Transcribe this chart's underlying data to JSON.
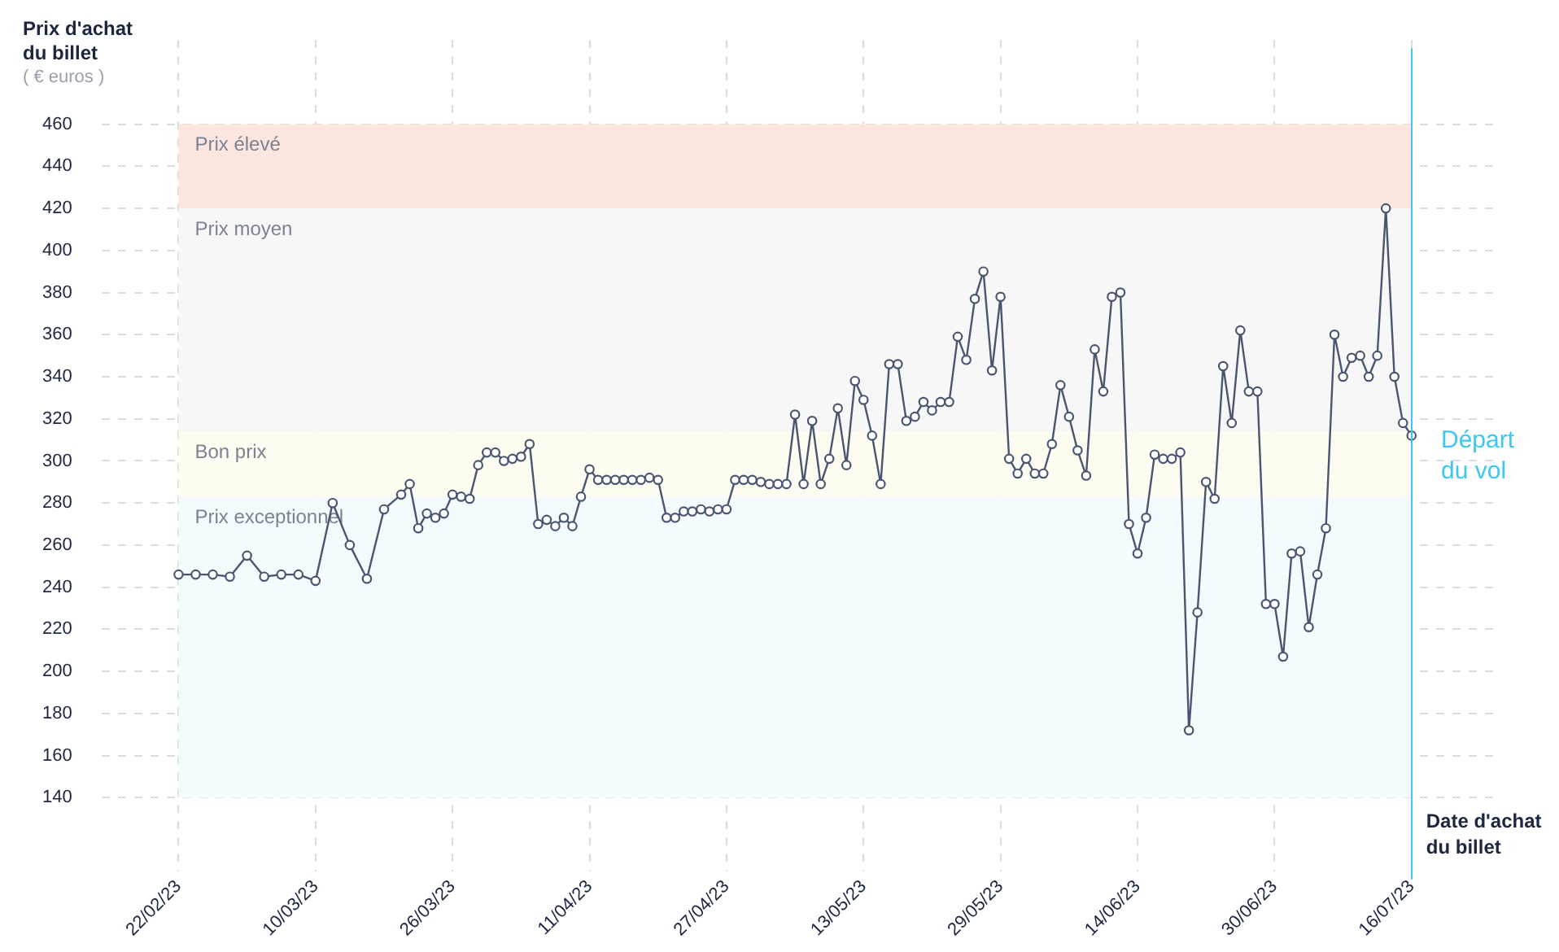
{
  "chart_data": {
    "type": "line",
    "ylabel": "Prix d'achat du billet",
    "xlabel": "Date d'achat du billet",
    "annotations": [
      "( € euros )"
    ],
    "x": [
      "2023-02-22",
      "2023-02-24",
      "2023-02-26",
      "2023-02-28",
      "2023-03-02",
      "2023-03-04",
      "2023-03-06",
      "2023-03-08",
      "2023-03-10",
      "2023-03-12",
      "2023-03-14",
      "2023-03-16",
      "2023-03-18",
      "2023-03-20",
      "2023-03-21",
      "2023-03-22",
      "2023-03-23",
      "2023-03-24",
      "2023-03-25",
      "2023-03-26",
      "2023-03-27",
      "2023-03-28",
      "2023-03-29",
      "2023-03-30",
      "2023-03-31",
      "2023-04-01",
      "2023-04-02",
      "2023-04-03",
      "2023-04-04",
      "2023-04-05",
      "2023-04-06",
      "2023-04-07",
      "2023-04-08",
      "2023-04-09",
      "2023-04-10",
      "2023-04-11",
      "2023-04-12",
      "2023-04-13",
      "2023-04-14",
      "2023-04-15",
      "2023-04-16",
      "2023-04-17",
      "2023-04-18",
      "2023-04-19",
      "2023-04-20",
      "2023-04-21",
      "2023-04-22",
      "2023-04-23",
      "2023-04-24",
      "2023-04-25",
      "2023-04-26",
      "2023-04-27",
      "2023-04-28",
      "2023-04-29",
      "2023-04-30",
      "2023-05-01",
      "2023-05-02",
      "2023-05-03",
      "2023-05-04",
      "2023-05-05",
      "2023-05-06",
      "2023-05-07",
      "2023-05-08",
      "2023-05-09",
      "2023-05-10",
      "2023-05-11",
      "2023-05-12",
      "2023-05-13",
      "2023-05-14",
      "2023-05-15",
      "2023-05-16",
      "2023-05-17",
      "2023-05-18",
      "2023-05-19",
      "2023-05-20",
      "2023-05-21",
      "2023-05-22",
      "2023-05-23",
      "2023-05-24",
      "2023-05-25",
      "2023-05-26",
      "2023-05-27",
      "2023-05-28",
      "2023-05-29",
      "2023-05-30",
      "2023-05-31",
      "2023-06-01",
      "2023-06-02",
      "2023-06-03",
      "2023-06-04",
      "2023-06-05",
      "2023-06-06",
      "2023-06-07",
      "2023-06-08",
      "2023-06-09",
      "2023-06-10",
      "2023-06-11",
      "2023-06-12",
      "2023-06-13",
      "2023-06-14",
      "2023-06-15",
      "2023-06-16",
      "2023-06-17",
      "2023-06-18",
      "2023-06-19",
      "2023-06-20",
      "2023-06-21",
      "2023-06-22",
      "2023-06-23",
      "2023-06-24",
      "2023-06-25",
      "2023-06-26",
      "2023-06-27",
      "2023-06-28",
      "2023-06-29",
      "2023-06-30",
      "2023-07-01",
      "2023-07-02",
      "2023-07-03",
      "2023-07-04",
      "2023-07-05",
      "2023-07-06",
      "2023-07-07",
      "2023-07-08",
      "2023-07-09",
      "2023-07-10",
      "2023-07-11",
      "2023-07-12",
      "2023-07-13",
      "2023-07-14",
      "2023-07-15",
      "2023-07-16"
    ],
    "series": [
      {
        "color": "#4a5670",
        "values": [
          246,
          246,
          246,
          245,
          255,
          245,
          246,
          246,
          243,
          280,
          260,
          244,
          277,
          284,
          289,
          268,
          275,
          273,
          275,
          284,
          283,
          282,
          298,
          304,
          304,
          300,
          301,
          302,
          308,
          270,
          272,
          269,
          273,
          269,
          283,
          296,
          291,
          291,
          291,
          291,
          291,
          291,
          292,
          291,
          273,
          273,
          276,
          276,
          277,
          276,
          277,
          277,
          291,
          291,
          291,
          290,
          289,
          289,
          289,
          322,
          289,
          319,
          289,
          301,
          325,
          298,
          338,
          329,
          312,
          289,
          346,
          346,
          319,
          321,
          328,
          324,
          328,
          328,
          359,
          348,
          377,
          390,
          343,
          378,
          301,
          294,
          301,
          294,
          294,
          308,
          336,
          321,
          305,
          293,
          353,
          333,
          378,
          380,
          270,
          256,
          273,
          303,
          301,
          301,
          304,
          172,
          228,
          290,
          282,
          345,
          318,
          362,
          333,
          333,
          232,
          232,
          207,
          256,
          257,
          221,
          246,
          268,
          360,
          340,
          349,
          350,
          340,
          350,
          420,
          340,
          318,
          312
        ]
      }
    ],
    "marker": "circle",
    "xlim": [
      "2023-02-13",
      "2023-07-26"
    ],
    "xticks": [
      {
        "value": "2023-02-22",
        "label": "22/02/23"
      },
      {
        "value": "2023-03-10",
        "label": "10/03/23"
      },
      {
        "value": "2023-03-26",
        "label": "26/03/23"
      },
      {
        "value": "2023-04-11",
        "label": "11/04/23"
      },
      {
        "value": "2023-04-27",
        "label": "27/04/23"
      },
      {
        "value": "2023-05-13",
        "label": "13/05/23"
      },
      {
        "value": "2023-05-29",
        "label": "29/05/23"
      },
      {
        "value": "2023-06-14",
        "label": "14/06/23"
      },
      {
        "value": "2023-06-30",
        "label": "30/06/23"
      },
      {
        "value": "2023-07-16",
        "label": "16/07/23"
      }
    ],
    "ylim": [
      105,
      500
    ],
    "yticks": [
      140,
      160,
      180,
      200,
      220,
      240,
      260,
      280,
      300,
      320,
      340,
      360,
      380,
      400,
      420,
      440,
      460
    ],
    "grid": true,
    "bands": [
      {
        "axis": "y",
        "from": 420,
        "to": 460,
        "label": "Prix élevé",
        "color": "#fde6df"
      },
      {
        "axis": "y",
        "from": 314,
        "to": 420,
        "label": "Prix moyen",
        "color": "#f7f7f7"
      },
      {
        "axis": "y",
        "from": 283,
        "to": 314,
        "label": "Bon prix",
        "color": "#fcfcf1"
      },
      {
        "axis": "y",
        "from": 140,
        "to": 283,
        "label": "Prix exceptionnel",
        "color": "#f3fbfd"
      }
    ],
    "ref_lines": [
      {
        "axis": "x",
        "value": "2023-07-16",
        "label": "Départ du vol",
        "color": "#3cc8f0"
      }
    ]
  }
}
